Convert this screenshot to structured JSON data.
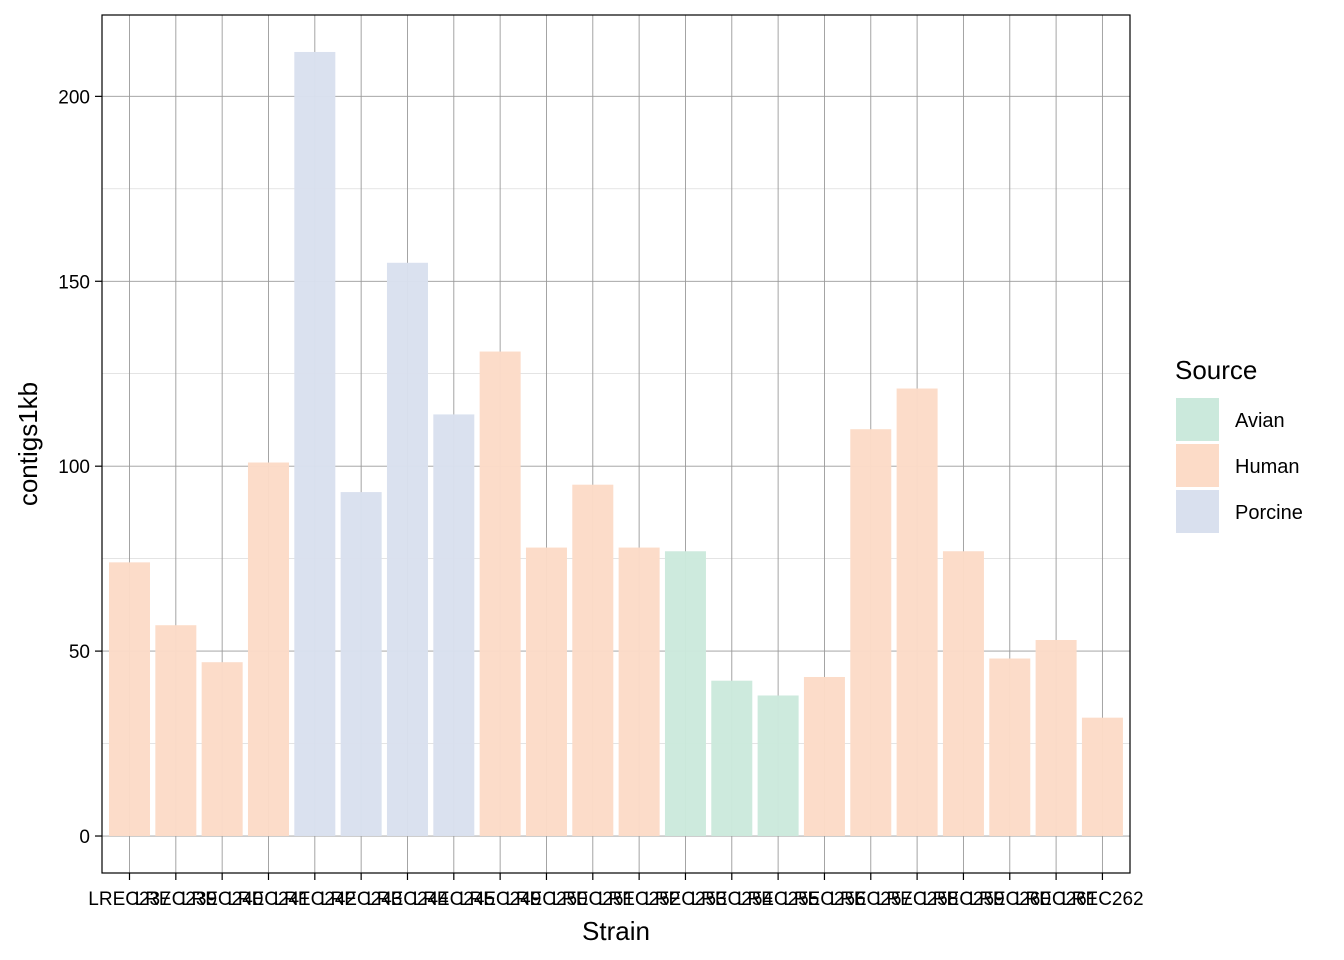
{
  "chart_data": {
    "type": "bar",
    "xlabel": "Strain",
    "ylabel": "contigs1kb",
    "ylim": [
      -10,
      222
    ],
    "yticks": [
      0,
      50,
      100,
      150,
      200
    ],
    "grid": true,
    "legend": {
      "title": "Source",
      "position": "right",
      "entries": [
        {
          "label": "Avian",
          "color": "#cbe9dc"
        },
        {
          "label": "Human",
          "color": "#fcdbc7"
        },
        {
          "label": "Porcine",
          "color": "#d9e0ee"
        }
      ]
    },
    "categories": [
      "LREC237",
      "LREC239",
      "LREC240",
      "LREC241",
      "LREC242",
      "LREC243",
      "LREC244",
      "LREC245",
      "LREC249",
      "LREC250",
      "LREC251",
      "LREC252",
      "LREC253",
      "LREC254",
      "LREC255",
      "LREC256",
      "LREC257",
      "LREC258",
      "LREC259",
      "LREC260",
      "LREC261",
      "LREC262"
    ],
    "tick_labels": [
      "LREC237",
      "LREC239",
      "LREC240",
      "LREC241",
      "LREC242",
      "LREC243",
      "LREC244",
      "LREC245",
      "LREC249",
      "LREC250",
      "LREC251",
      "LREC252",
      "LREC253",
      "LREC254",
      "LREC255",
      "LREC256",
      "LREC257",
      "LREC258",
      "LREC259",
      "LREC260",
      "LREC261",
      "LREC262"
    ],
    "values": [
      74,
      57,
      47,
      101,
      212,
      93,
      155,
      114,
      131,
      78,
      95,
      78,
      77,
      42,
      38,
      43,
      110,
      121,
      77,
      48,
      53,
      32
    ],
    "source": [
      "Human",
      "Human",
      "Human",
      "Human",
      "Porcine",
      "Porcine",
      "Porcine",
      "Porcine",
      "Human",
      "Human",
      "Human",
      "Human",
      "Avian",
      "Avian",
      "Avian",
      "Human",
      "Human",
      "Human",
      "Human",
      "Human",
      "Human",
      "Human"
    ]
  }
}
